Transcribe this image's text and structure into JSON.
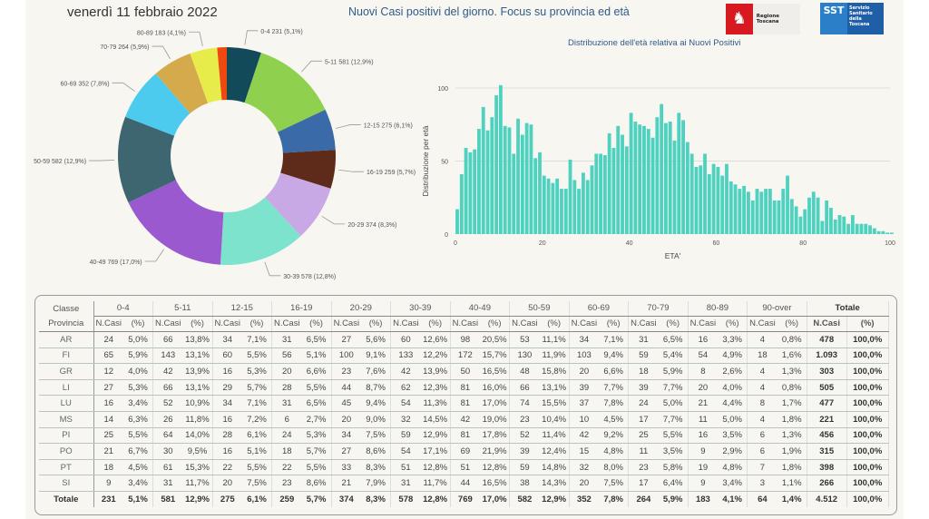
{
  "header": {
    "date": "venerdì 11 febbraio 2022",
    "title": "Nuovi Casi positivi del giorno. Focus su provincia ed età",
    "logo_regione": "Regione Toscana",
    "logo_sst": "SST",
    "logo_sst_text": "Servizio\nSanitario\ndella\nToscana"
  },
  "chart_data": [
    {
      "type": "pie",
      "title": "",
      "categories": [
        "0-4",
        "5-11",
        "12-15",
        "16-19",
        "20-29",
        "30-39",
        "40-49",
        "50-59",
        "60-69",
        "70-79",
        "80-89",
        "90-over"
      ],
      "values": [
        231,
        581,
        275,
        259,
        374,
        578,
        769,
        582,
        352,
        264,
        183,
        64
      ],
      "labels": [
        "0-4 231 (5,1%)",
        "5-11 581 (12,9%)",
        "12-15 275 (6,1%)",
        "16-19 259 (5,7%)",
        "20-29 374 (8,3%)",
        "30-39 578 (12,8%)",
        "40-49 769 (17,0%)",
        "50-59 582 (12,9%)",
        "60-69 352 (7,8%)",
        "70-79 264 (5,9%)",
        "80-89 183 (4,1%)",
        ""
      ],
      "colors": [
        "#124a5a",
        "#8fd14f",
        "#3a6aa8",
        "#5e2a1a",
        "#c9a8e6",
        "#7de3cc",
        "#9b59d0",
        "#3d6670",
        "#4ccbee",
        "#d4aa4c",
        "#e8ec4a",
        "#ee4a10"
      ]
    },
    {
      "type": "bar",
      "title": "Distribuzione dell'età relativa ai Nuovi Positivi",
      "xlabel": "ETA'",
      "ylabel": "Distribuzione per età",
      "xlim": [
        0,
        100
      ],
      "ylim": [
        0,
        100
      ],
      "xticks": [
        0,
        20,
        40,
        60,
        80,
        100
      ],
      "yticks": [
        0,
        50,
        100
      ],
      "grid": true,
      "color": "#4fd1c0",
      "values": [
        17,
        41,
        59,
        56,
        58,
        72,
        87,
        71,
        80,
        95,
        102,
        74,
        73,
        55,
        79,
        68,
        76,
        75,
        52,
        56,
        40,
        38,
        35,
        38,
        31,
        31,
        51,
        37,
        31,
        42,
        37,
        47,
        55,
        55,
        54,
        69,
        59,
        74,
        68,
        60,
        83,
        77,
        75,
        74,
        72,
        66,
        80,
        89,
        76,
        77,
        64,
        83,
        78,
        63,
        55,
        46,
        47,
        55,
        41,
        48,
        46,
        40,
        48,
        36,
        34,
        31,
        33,
        29,
        23,
        31,
        29,
        31,
        31,
        23,
        23,
        31,
        40,
        24,
        19,
        12,
        17,
        25,
        29,
        25,
        9,
        23,
        18,
        10,
        13,
        12,
        7,
        13,
        7,
        7,
        7,
        6,
        4,
        2,
        2,
        1,
        1
      ]
    }
  ],
  "table": {
    "classe_label": "Classe",
    "provincia_label": "Provincia",
    "ncasi_label": "N.Casi",
    "pct_label": "(%)",
    "totale_label": "Totale",
    "groups": [
      "0-4",
      "5-11",
      "12-15",
      "16-19",
      "20-29",
      "30-39",
      "40-49",
      "50-59",
      "60-69",
      "70-79",
      "80-89",
      "90-over"
    ],
    "rows": [
      [
        "AR",
        "24",
        "5,0%",
        "66",
        "13,8%",
        "34",
        "7,1%",
        "31",
        "6,5%",
        "27",
        "5,6%",
        "60",
        "12,6%",
        "98",
        "20,5%",
        "53",
        "11,1%",
        "34",
        "7,1%",
        "31",
        "6,5%",
        "16",
        "3,3%",
        "4",
        "0,8%",
        "478",
        "100,0%"
      ],
      [
        "FI",
        "65",
        "5,9%",
        "143",
        "13,1%",
        "60",
        "5,5%",
        "56",
        "5,1%",
        "100",
        "9,1%",
        "133",
        "12,2%",
        "172",
        "15,7%",
        "130",
        "11,9%",
        "103",
        "9,4%",
        "59",
        "5,4%",
        "54",
        "4,9%",
        "18",
        "1,6%",
        "1.093",
        "100,0%"
      ],
      [
        "GR",
        "12",
        "4,0%",
        "42",
        "13,9%",
        "16",
        "5,3%",
        "20",
        "6,6%",
        "23",
        "7,6%",
        "42",
        "13,9%",
        "50",
        "16,5%",
        "48",
        "15,8%",
        "20",
        "6,6%",
        "18",
        "5,9%",
        "8",
        "2,6%",
        "4",
        "1,3%",
        "303",
        "100,0%"
      ],
      [
        "LI",
        "27",
        "5,3%",
        "66",
        "13,1%",
        "29",
        "5,7%",
        "28",
        "5,5%",
        "44",
        "8,7%",
        "62",
        "12,3%",
        "81",
        "16,0%",
        "66",
        "13,1%",
        "39",
        "7,7%",
        "39",
        "7,7%",
        "20",
        "4,0%",
        "4",
        "0,8%",
        "505",
        "100,0%"
      ],
      [
        "LU",
        "16",
        "3,4%",
        "52",
        "10,9%",
        "34",
        "7,1%",
        "31",
        "6,5%",
        "45",
        "9,4%",
        "54",
        "11,3%",
        "81",
        "17,0%",
        "74",
        "15,5%",
        "37",
        "7,8%",
        "24",
        "5,0%",
        "21",
        "4,4%",
        "8",
        "1,7%",
        "477",
        "100,0%"
      ],
      [
        "MS",
        "14",
        "6,3%",
        "26",
        "11,8%",
        "16",
        "7,2%",
        "6",
        "2,7%",
        "20",
        "9,0%",
        "32",
        "14,5%",
        "42",
        "19,0%",
        "23",
        "10,4%",
        "10",
        "4,5%",
        "17",
        "7,7%",
        "11",
        "5,0%",
        "4",
        "1,8%",
        "221",
        "100,0%"
      ],
      [
        "PI",
        "25",
        "5,5%",
        "64",
        "14,0%",
        "28",
        "6,1%",
        "24",
        "5,3%",
        "34",
        "7,5%",
        "59",
        "12,9%",
        "81",
        "17,8%",
        "52",
        "11,4%",
        "42",
        "9,2%",
        "25",
        "5,5%",
        "16",
        "3,5%",
        "6",
        "1,3%",
        "456",
        "100,0%"
      ],
      [
        "PO",
        "21",
        "6,7%",
        "30",
        "9,5%",
        "16",
        "5,1%",
        "18",
        "5,7%",
        "27",
        "8,6%",
        "54",
        "17,1%",
        "69",
        "21,9%",
        "39",
        "12,4%",
        "15",
        "4,8%",
        "11",
        "3,5%",
        "9",
        "2,9%",
        "6",
        "1,9%",
        "315",
        "100,0%"
      ],
      [
        "PT",
        "18",
        "4,5%",
        "61",
        "15,3%",
        "22",
        "5,5%",
        "22",
        "5,5%",
        "33",
        "8,3%",
        "51",
        "12,8%",
        "51",
        "12,8%",
        "59",
        "14,8%",
        "32",
        "8,0%",
        "23",
        "5,8%",
        "19",
        "4,8%",
        "7",
        "1,8%",
        "398",
        "100,0%"
      ],
      [
        "SI",
        "9",
        "3,4%",
        "31",
        "11,7%",
        "20",
        "7,5%",
        "23",
        "8,6%",
        "21",
        "7,9%",
        "31",
        "11,7%",
        "44",
        "16,5%",
        "38",
        "14,3%",
        "20",
        "7,5%",
        "17",
        "6,4%",
        "9",
        "3,4%",
        "3",
        "1,1%",
        "266",
        "100,0%"
      ]
    ],
    "total_row": [
      "Totale",
      "231",
      "5,1%",
      "581",
      "12,9%",
      "275",
      "6,1%",
      "259",
      "5,7%",
      "374",
      "8,3%",
      "578",
      "12,8%",
      "769",
      "17,0%",
      "582",
      "12,9%",
      "352",
      "7,8%",
      "264",
      "5,9%",
      "183",
      "4,1%",
      "64",
      "1,4%",
      "4.512",
      "100,0%"
    ]
  }
}
